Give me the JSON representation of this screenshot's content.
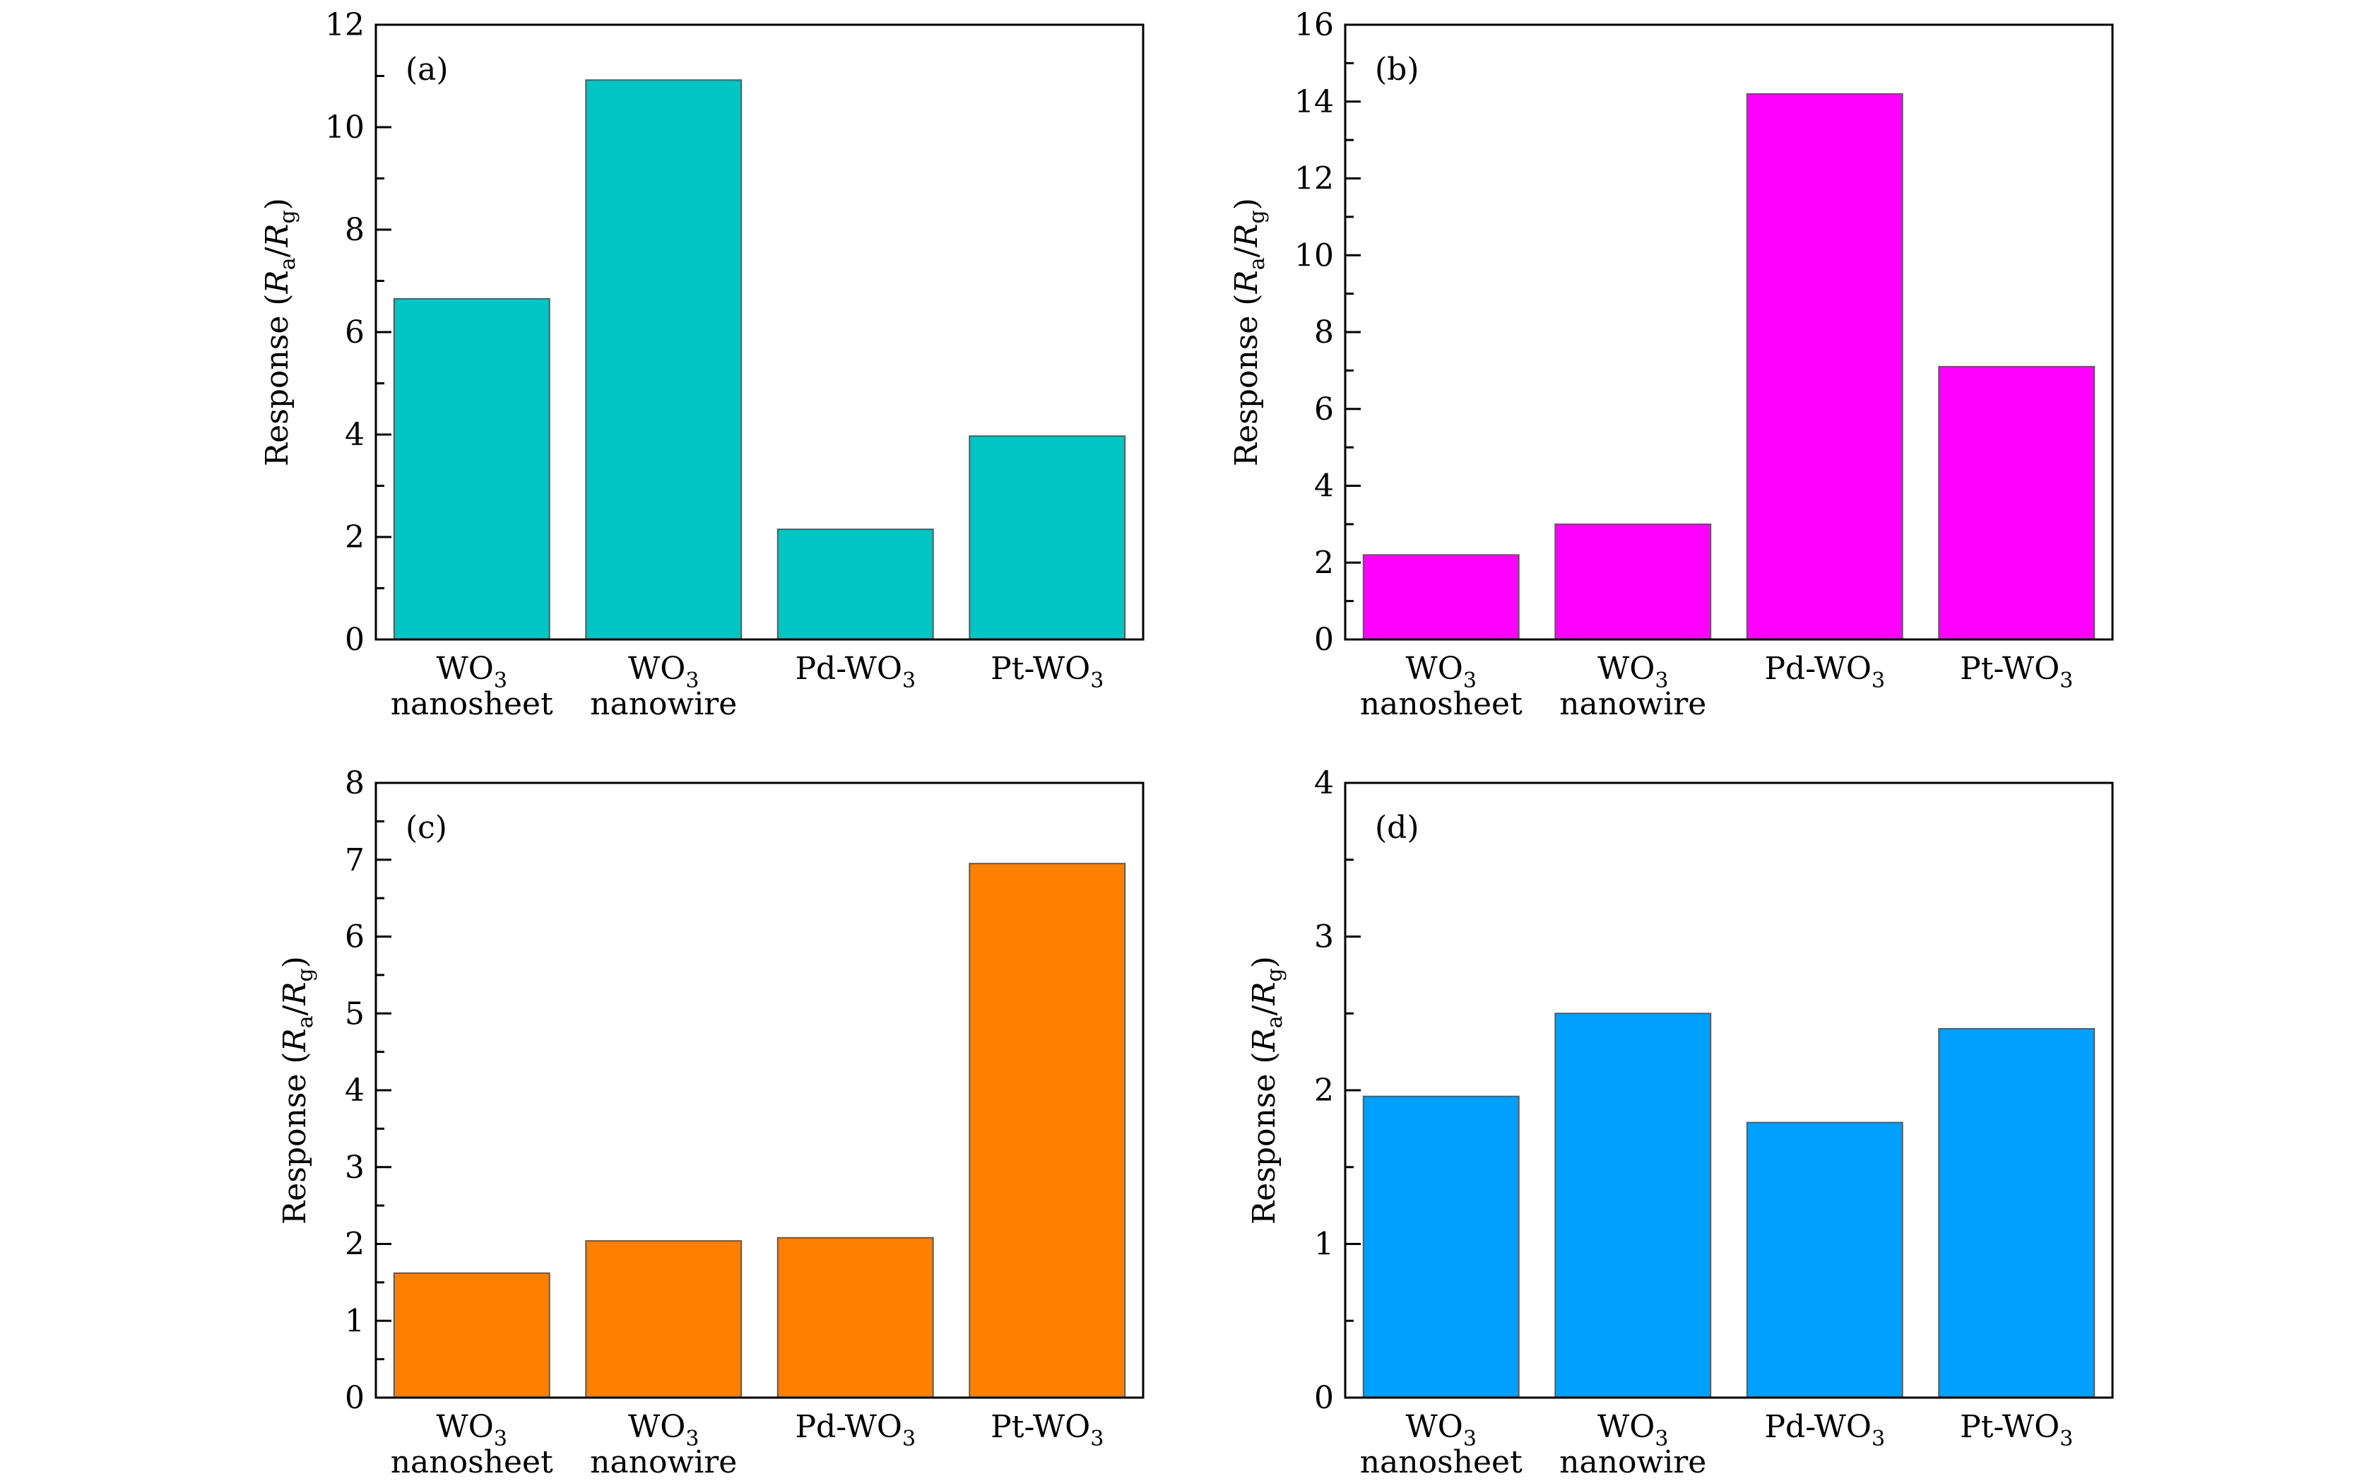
{
  "chart_data": [
    {
      "type": "bar",
      "panel_label": "(a)",
      "categories": [
        {
          "main": "WO",
          "sub": "3",
          "line2": "nanosheet"
        },
        {
          "main": "WO",
          "sub": "3",
          "line2": "nanowire"
        },
        {
          "main": "Pd-WO",
          "sub": "3",
          "line2": ""
        },
        {
          "main": "Pt-WO",
          "sub": "3",
          "line2": ""
        }
      ],
      "values": [
        6.65,
        10.92,
        2.15,
        3.97
      ],
      "color": "#00C5C5",
      "ylim": [
        0,
        12
      ],
      "yticks": [
        "0",
        "2",
        "4",
        "6",
        "8",
        "10",
        "12"
      ],
      "ylabel": {
        "prefix": "Response (",
        "r1": "R",
        "s1": "a",
        "slash": "/",
        "r2": "R",
        "s2": "g",
        "suffix": ")"
      }
    },
    {
      "type": "bar",
      "panel_label": "(b)",
      "categories": [
        {
          "main": "WO",
          "sub": "3",
          "line2": "nanosheet"
        },
        {
          "main": "WO",
          "sub": "3",
          "line2": "nanowire"
        },
        {
          "main": "Pd-WO",
          "sub": "3",
          "line2": ""
        },
        {
          "main": "Pt-WO",
          "sub": "3",
          "line2": ""
        }
      ],
      "values": [
        2.2,
        3.0,
        14.2,
        7.1
      ],
      "color": "#FF00FF",
      "ylim": [
        0,
        16
      ],
      "yticks": [
        "0",
        "2",
        "4",
        "6",
        "8",
        "10",
        "12",
        "14",
        "16"
      ],
      "ylabel": {
        "prefix": "Response (",
        "r1": "R",
        "s1": "a",
        "slash": "/",
        "r2": "R",
        "s2": "g",
        "suffix": ")"
      }
    },
    {
      "type": "bar",
      "panel_label": "(c)",
      "categories": [
        {
          "main": "WO",
          "sub": "3",
          "line2": "nanosheet"
        },
        {
          "main": "WO",
          "sub": "3",
          "line2": "nanowire"
        },
        {
          "main": "Pd-WO",
          "sub": "3",
          "line2": ""
        },
        {
          "main": "Pt-WO",
          "sub": "3",
          "line2": ""
        }
      ],
      "values": [
        1.62,
        2.04,
        2.08,
        6.95
      ],
      "color": "#FF8000",
      "ylim": [
        0,
        8
      ],
      "yticks": [
        "0",
        "1",
        "2",
        "3",
        "4",
        "5",
        "6",
        "7",
        "8"
      ],
      "ylabel": {
        "prefix": "Response (",
        "r1": "R",
        "s1": "a",
        "slash": "/",
        "r2": "R",
        "s2": "g",
        "suffix": ")"
      }
    },
    {
      "type": "bar",
      "panel_label": "(d)",
      "categories": [
        {
          "main": "WO",
          "sub": "3",
          "line2": "nanosheet"
        },
        {
          "main": "WO",
          "sub": "3",
          "line2": "nanowire"
        },
        {
          "main": "Pd-WO",
          "sub": "3",
          "line2": ""
        },
        {
          "main": "Pt-WO",
          "sub": "3",
          "line2": ""
        }
      ],
      "values": [
        1.96,
        2.5,
        1.79,
        2.4
      ],
      "color": "#00A0FF",
      "ylim": [
        0,
        4
      ],
      "yticks": [
        "0",
        "1",
        "2",
        "3",
        "4"
      ],
      "ylabel": {
        "prefix": "Response (",
        "r1": "R",
        "s1": "a",
        "slash": "/",
        "r2": "R",
        "s2": "g",
        "suffix": ")"
      }
    }
  ]
}
